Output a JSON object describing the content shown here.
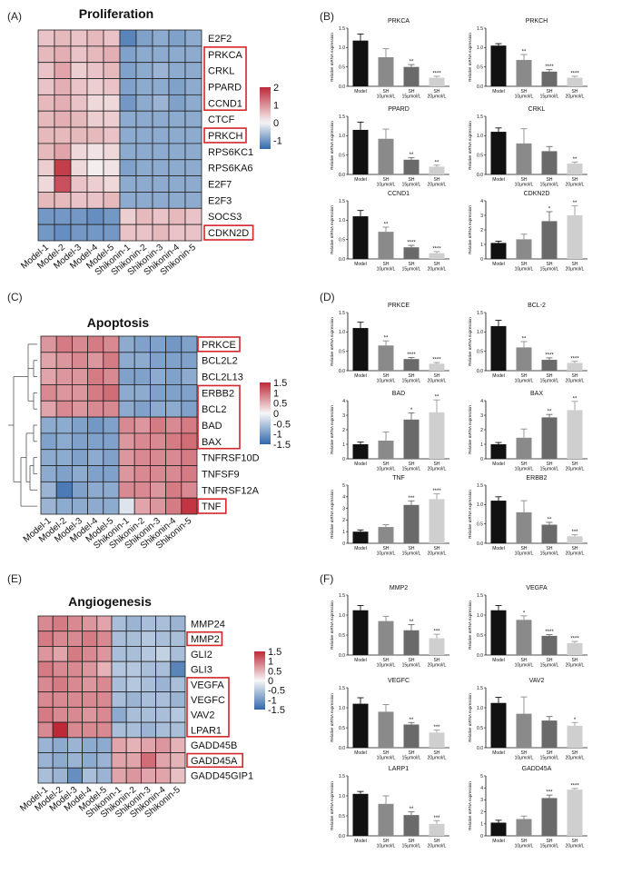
{
  "chart_data": [
    {
      "type": "heatmap",
      "panel": "(A)",
      "title": "Proliferation",
      "rows": [
        "E2F2",
        "PRKCA",
        "CRKL",
        "PPARD",
        "CCND1",
        "CTCF",
        "PRKCH",
        "RPS6KC1",
        "RPS6KA6",
        "E2F7",
        "E2F3",
        "SOCS3",
        "CDKN2D"
      ],
      "columns": [
        "Model-1",
        "Model-2",
        "Model-3",
        "Model-4",
        "Model-5",
        "Shikonin-1",
        "Shikonin-2",
        "Shikonin-3",
        "Shikonin-4",
        "Shikonin-5"
      ],
      "colorbar_ticks": [
        "2",
        "1",
        "0",
        "-1"
      ],
      "vmin": -1.5,
      "vmax": 2,
      "highlighted": [
        "PRKCA",
        "CRKL",
        "PPARD",
        "CCND1",
        "PRKCH",
        "CDKN2D"
      ],
      "values": [
        [
          0.5,
          0.6,
          0.5,
          0.6,
          0.5,
          -1.2,
          -0.9,
          -0.8,
          -0.9,
          -0.8
        ],
        [
          0.6,
          0.7,
          0.5,
          0.6,
          0.7,
          -0.9,
          -0.8,
          -0.8,
          -0.8,
          -0.8
        ],
        [
          0.5,
          0.8,
          0.4,
          0.5,
          0.6,
          -0.9,
          -0.8,
          -0.7,
          -0.8,
          -0.8
        ],
        [
          0.5,
          0.7,
          0.5,
          0.4,
          0.5,
          -0.9,
          -0.8,
          -0.8,
          -0.9,
          -0.8
        ],
        [
          0.6,
          0.7,
          0.5,
          0.3,
          0.3,
          -1.0,
          -0.8,
          -0.7,
          -0.9,
          -0.8
        ],
        [
          0.6,
          0.7,
          0.6,
          0.4,
          0.4,
          -0.8,
          -0.8,
          -0.8,
          -0.8,
          -0.8
        ],
        [
          0.6,
          0.6,
          0.6,
          0.6,
          0.5,
          -0.8,
          -0.8,
          -0.8,
          -0.8,
          -0.8
        ],
        [
          0.6,
          0.8,
          0.3,
          0.2,
          0.3,
          -0.8,
          -0.8,
          -0.8,
          -0.8,
          -0.8
        ],
        [
          0.4,
          1.8,
          0.3,
          0.1,
          0.2,
          -0.9,
          -0.8,
          -0.8,
          -0.8,
          -0.8
        ],
        [
          0.3,
          1.6,
          0.5,
          0.4,
          0.3,
          -0.8,
          -0.8,
          -0.8,
          -0.8,
          -0.8
        ],
        [
          0.6,
          0.6,
          0.5,
          0.5,
          0.6,
          -0.8,
          -0.8,
          -0.8,
          -0.8,
          -0.8
        ],
        [
          -1.0,
          -1.0,
          -1.0,
          -1.1,
          -1.0,
          0.4,
          0.6,
          0.5,
          0.6,
          0.5
        ],
        [
          -1.0,
          -1.1,
          -1.0,
          -1.0,
          -1.0,
          0.5,
          0.5,
          0.6,
          0.5,
          0.5
        ]
      ]
    },
    {
      "type": "heatmap",
      "panel": "(C)",
      "title": "Apoptosis",
      "rows": [
        "PRKCE",
        "BCL2L2",
        "BCL2L13",
        "ERBB2",
        "BCL2",
        "BAD",
        "BAX",
        "TNFRSF10D",
        "TNFSF9",
        "TNFRSF12A",
        "TNF"
      ],
      "columns": [
        "Model-1",
        "Model-2",
        "Model-3",
        "Model-4",
        "Model-5",
        "Shikonin-1",
        "Shikonin-2",
        "Shikonin-3",
        "Shikonin-4",
        "Shikonin-5"
      ],
      "colorbar_ticks": [
        "1.5",
        "1",
        "0.5",
        "0",
        "-0.5",
        "-1",
        "-1.5"
      ],
      "vmin": -1.5,
      "vmax": 1.5,
      "highlighted": [
        "PRKCE",
        "ERBB2",
        "BCL2",
        "BAD",
        "BAX",
        "TNF"
      ],
      "values": [
        [
          0.7,
          0.9,
          0.8,
          0.9,
          0.8,
          -0.8,
          -0.9,
          -0.9,
          -1.0,
          -0.9
        ],
        [
          0.6,
          0.7,
          0.8,
          0.7,
          0.9,
          -0.8,
          -0.8,
          -0.9,
          -0.9,
          -0.9
        ],
        [
          0.6,
          0.7,
          0.7,
          0.9,
          0.8,
          -0.9,
          -0.9,
          -0.8,
          -0.9,
          -0.8
        ],
        [
          0.8,
          0.7,
          0.7,
          0.9,
          1.0,
          -0.8,
          -0.8,
          -0.9,
          -0.9,
          -0.9
        ],
        [
          0.6,
          0.8,
          0.7,
          0.8,
          0.8,
          -0.8,
          -0.9,
          -0.8,
          -0.8,
          -0.9
        ],
        [
          -0.8,
          -0.8,
          -0.9,
          -1.0,
          -0.9,
          0.8,
          0.7,
          0.9,
          0.8,
          0.9
        ],
        [
          -0.9,
          -0.8,
          -0.9,
          -0.9,
          -0.9,
          0.7,
          0.8,
          0.8,
          0.9,
          1.0
        ],
        [
          -0.8,
          -0.8,
          -0.9,
          -0.8,
          -0.9,
          0.7,
          0.8,
          0.8,
          0.8,
          0.9
        ],
        [
          -0.8,
          -0.9,
          -0.8,
          -0.9,
          -0.9,
          0.7,
          0.8,
          0.8,
          0.8,
          0.9
        ],
        [
          -0.7,
          -1.3,
          -0.9,
          -0.8,
          -0.8,
          0.8,
          0.8,
          0.7,
          0.9,
          0.8
        ],
        [
          -0.7,
          -0.8,
          -0.8,
          -0.8,
          -0.8,
          -0.2,
          0.6,
          0.7,
          0.9,
          1.4
        ]
      ]
    },
    {
      "type": "heatmap",
      "panel": "(E)",
      "title": "Angiogenesis",
      "rows": [
        "MMP24",
        "MMP2",
        "GLI2",
        "GLI3",
        "VEGFA",
        "VEGFC",
        "VAV2",
        "LPAR1",
        "GADD45B",
        "GADD45A",
        "GADD45GIP1"
      ],
      "columns": [
        "Model-1",
        "Model-2",
        "Model-3",
        "Model-4",
        "Model-5",
        "Shikonin-1",
        "Shikonin-2",
        "Shikonin-3",
        "Shikonin-4",
        "Shikonin-5"
      ],
      "colorbar_ticks": [
        "1.5",
        "1",
        "0.5",
        "0",
        "-0.5",
        "-1",
        "-1.5"
      ],
      "vmin": -1.5,
      "vmax": 1.5,
      "highlighted": [
        "MMP2",
        "VEGFA",
        "VEGFC",
        "VAV2",
        "LPAR1",
        "GADD45A"
      ],
      "values": [
        [
          0.8,
          0.9,
          0.8,
          0.7,
          0.6,
          -0.6,
          -0.7,
          -0.6,
          -0.6,
          -0.7
        ],
        [
          0.9,
          0.8,
          0.8,
          0.9,
          0.8,
          -0.6,
          -0.6,
          -0.5,
          -0.6,
          -0.6
        ],
        [
          0.7,
          0.6,
          0.9,
          0.8,
          0.7,
          -0.6,
          -0.6,
          -0.5,
          -0.4,
          -0.6
        ],
        [
          0.9,
          0.8,
          0.8,
          0.7,
          0.5,
          -0.5,
          -0.5,
          -0.6,
          -0.6,
          -1.2
        ],
        [
          0.8,
          0.9,
          0.8,
          0.7,
          0.8,
          -0.6,
          -0.5,
          -0.6,
          -0.7,
          -0.6
        ],
        [
          0.8,
          0.8,
          0.8,
          0.8,
          0.8,
          -0.6,
          -0.7,
          -0.6,
          -0.6,
          -0.7
        ],
        [
          0.9,
          0.8,
          0.8,
          0.7,
          0.8,
          -0.8,
          -0.6,
          -0.6,
          -0.6,
          -0.5
        ],
        [
          0.8,
          1.5,
          0.8,
          0.8,
          0.8,
          -0.6,
          -0.6,
          -0.7,
          -0.6,
          -0.6
        ],
        [
          -0.7,
          -0.8,
          -0.7,
          -0.8,
          -0.8,
          0.6,
          0.5,
          0.6,
          0.7,
          0.5
        ],
        [
          -0.7,
          -0.8,
          -0.7,
          -0.8,
          -0.7,
          0.6,
          0.6,
          1.0,
          0.6,
          0.5
        ],
        [
          -0.6,
          -0.7,
          -1.1,
          -0.6,
          -0.7,
          0.6,
          0.7,
          0.6,
          0.6,
          0.4
        ]
      ]
    },
    {
      "type": "bar",
      "panel": "(B)",
      "ylabel": "Relative mRNA expression",
      "categories": [
        [
          "Model",
          ""
        ],
        [
          "SH",
          "10μmol/L"
        ],
        [
          "SH",
          "15μmol/L"
        ],
        [
          "SH",
          "20μmol/L"
        ]
      ],
      "colors": [
        "#111111",
        "#8a8a8a",
        "#6a6a6a",
        "#cfcfcf"
      ],
      "charts": [
        {
          "title": "PRKCA",
          "ylim": [
            0,
            1.5
          ],
          "yticks": [
            "0.0",
            "0.5",
            "1.0",
            "1.5"
          ],
          "values": [
            1.18,
            0.75,
            0.5,
            0.22
          ],
          "errors": [
            0.17,
            0.22,
            0.06,
            0.04
          ],
          "sig": [
            "",
            "",
            "**",
            "****"
          ]
        },
        {
          "title": "PRKCH",
          "ylim": [
            0,
            1.5
          ],
          "yticks": [
            "0.0",
            "0.5",
            "1.0",
            "1.5"
          ],
          "values": [
            1.05,
            0.68,
            0.38,
            0.22
          ],
          "errors": [
            0.05,
            0.14,
            0.05,
            0.04
          ],
          "sig": [
            "",
            "**",
            "****",
            "****"
          ]
        },
        {
          "title": "PPARD",
          "ylim": [
            0,
            1.5
          ],
          "yticks": [
            "0.0",
            "0.5",
            "1.0",
            "1.5"
          ],
          "values": [
            1.15,
            0.92,
            0.38,
            0.2
          ],
          "errors": [
            0.2,
            0.25,
            0.05,
            0.04
          ],
          "sig": [
            "",
            "",
            "**",
            "**"
          ]
        },
        {
          "title": "CRKL",
          "ylim": [
            0,
            1.5
          ],
          "yticks": [
            "0.0",
            "0.5",
            "1.0",
            "1.5"
          ],
          "values": [
            1.1,
            0.8,
            0.6,
            0.28
          ],
          "errors": [
            0.1,
            0.38,
            0.12,
            0.04
          ],
          "sig": [
            "",
            "",
            "",
            "**"
          ]
        },
        {
          "title": "CCND1",
          "ylim": [
            0,
            1.5
          ],
          "yticks": [
            "0.0",
            "0.5",
            "1.0",
            "1.5"
          ],
          "values": [
            1.1,
            0.7,
            0.3,
            0.15
          ],
          "errors": [
            0.15,
            0.12,
            0.05,
            0.04
          ],
          "sig": [
            "",
            "**",
            "****",
            "****"
          ]
        },
        {
          "title": "CDKN2D",
          "ylim": [
            0,
            4
          ],
          "yticks": [
            "0",
            "1",
            "2",
            "3",
            "4"
          ],
          "values": [
            1.1,
            1.35,
            2.6,
            3.0
          ],
          "errors": [
            0.12,
            0.35,
            0.65,
            0.65
          ],
          "sig": [
            "",
            "",
            "*",
            "**"
          ]
        }
      ]
    },
    {
      "type": "bar",
      "panel": "(D)",
      "ylabel": "Relative mRNA expression",
      "categories": [
        [
          "Model",
          ""
        ],
        [
          "SH",
          "10μmol/L"
        ],
        [
          "SH",
          "15μmol/L"
        ],
        [
          "SH",
          "20μmol/L"
        ]
      ],
      "colors": [
        "#111111",
        "#8a8a8a",
        "#6a6a6a",
        "#cfcfcf"
      ],
      "charts": [
        {
          "title": "PRKCE",
          "ylim": [
            0,
            1.5
          ],
          "yticks": [
            "0.0",
            "0.5",
            "1.0",
            "1.5"
          ],
          "values": [
            1.1,
            0.65,
            0.3,
            0.18
          ],
          "errors": [
            0.15,
            0.12,
            0.04,
            0.03
          ],
          "sig": [
            "",
            "**",
            "****",
            "****"
          ]
        },
        {
          "title": "BCL-2",
          "ylim": [
            0,
            1.5
          ],
          "yticks": [
            "0.0",
            "0.5",
            "1.0",
            "1.5"
          ],
          "values": [
            1.15,
            0.6,
            0.28,
            0.2
          ],
          "errors": [
            0.15,
            0.15,
            0.05,
            0.04
          ],
          "sig": [
            "",
            "**",
            "****",
            "****"
          ]
        },
        {
          "title": "BAD",
          "ylim": [
            0,
            4
          ],
          "yticks": [
            "0",
            "1",
            "2",
            "3",
            "4"
          ],
          "values": [
            1.0,
            1.25,
            2.7,
            3.2
          ],
          "errors": [
            0.15,
            0.6,
            0.45,
            0.85
          ],
          "sig": [
            "",
            "",
            "*",
            "**"
          ]
        },
        {
          "title": "BAX",
          "ylim": [
            0,
            4
          ],
          "yticks": [
            "0",
            "1",
            "2",
            "3",
            "4"
          ],
          "values": [
            1.0,
            1.45,
            2.85,
            3.35
          ],
          "errors": [
            0.12,
            0.6,
            0.2,
            0.6
          ],
          "sig": [
            "",
            "",
            "**",
            "**"
          ]
        },
        {
          "title": "TNF",
          "ylim": [
            0,
            5
          ],
          "yticks": [
            "0",
            "1",
            "2",
            "3",
            "4",
            "5"
          ],
          "values": [
            1.0,
            1.4,
            3.3,
            3.8
          ],
          "errors": [
            0.15,
            0.2,
            0.35,
            0.45
          ],
          "sig": [
            "",
            "",
            "***",
            "****"
          ]
        },
        {
          "title": "ERBB2",
          "ylim": [
            0,
            1.5
          ],
          "yticks": [
            "0.0",
            "0.5",
            "1.0",
            "1.5"
          ],
          "values": [
            1.1,
            0.8,
            0.48,
            0.18
          ],
          "errors": [
            0.1,
            0.3,
            0.06,
            0.04
          ],
          "sig": [
            "",
            "",
            "**",
            "***"
          ]
        }
      ]
    },
    {
      "type": "bar",
      "panel": "(F)",
      "ylabel": "Relative mRNA expression",
      "categories": [
        [
          "Model",
          ""
        ],
        [
          "SH",
          "10μmol/L"
        ],
        [
          "SH",
          "15μmol/L"
        ],
        [
          "SH",
          "20μmol/L"
        ]
      ],
      "colors": [
        "#111111",
        "#8a8a8a",
        "#6a6a6a",
        "#cfcfcf"
      ],
      "charts": [
        {
          "title": "MMP2",
          "ylim": [
            0,
            1.5
          ],
          "yticks": [
            "0.0",
            "0.5",
            "1.0",
            "1.5"
          ],
          "values": [
            1.12,
            0.85,
            0.62,
            0.42
          ],
          "errors": [
            0.12,
            0.12,
            0.14,
            0.1
          ],
          "sig": [
            "",
            "",
            "**",
            "***"
          ]
        },
        {
          "title": "VEGFA",
          "ylim": [
            0,
            1.5
          ],
          "yticks": [
            "0.0",
            "0.5",
            "1.0",
            "1.5"
          ],
          "values": [
            1.12,
            0.88,
            0.48,
            0.3
          ],
          "errors": [
            0.12,
            0.1,
            0.03,
            0.04
          ],
          "sig": [
            "",
            "*",
            "****",
            "****"
          ]
        },
        {
          "title": "VEGFC",
          "ylim": [
            0,
            1.5
          ],
          "yticks": [
            "0.0",
            "0.5",
            "1.0",
            "1.5"
          ],
          "values": [
            1.1,
            0.9,
            0.58,
            0.38
          ],
          "errors": [
            0.15,
            0.18,
            0.05,
            0.06
          ],
          "sig": [
            "",
            "",
            "**",
            "***"
          ]
        },
        {
          "title": "VAV2",
          "ylim": [
            0,
            1.5
          ],
          "yticks": [
            "0.0",
            "0.5",
            "1.0",
            "1.5"
          ],
          "values": [
            1.12,
            0.85,
            0.68,
            0.55
          ],
          "errors": [
            0.14,
            0.42,
            0.1,
            0.08
          ],
          "sig": [
            "",
            "",
            "",
            "*"
          ]
        },
        {
          "title": "LARP1",
          "ylim": [
            0,
            1.5
          ],
          "yticks": [
            "0.0",
            "0.5",
            "1.0",
            "1.5"
          ],
          "values": [
            1.05,
            0.8,
            0.52,
            0.3
          ],
          "errors": [
            0.06,
            0.2,
            0.08,
            0.08
          ],
          "sig": [
            "",
            "",
            "**",
            "***"
          ]
        },
        {
          "title": "GADD45A",
          "ylim": [
            0,
            5
          ],
          "yticks": [
            "0",
            "1",
            "2",
            "3",
            "4",
            "5"
          ],
          "values": [
            1.1,
            1.4,
            3.15,
            3.85
          ],
          "errors": [
            0.2,
            0.25,
            0.25,
            0.1
          ],
          "sig": [
            "",
            "",
            "***",
            "****"
          ]
        }
      ]
    }
  ]
}
